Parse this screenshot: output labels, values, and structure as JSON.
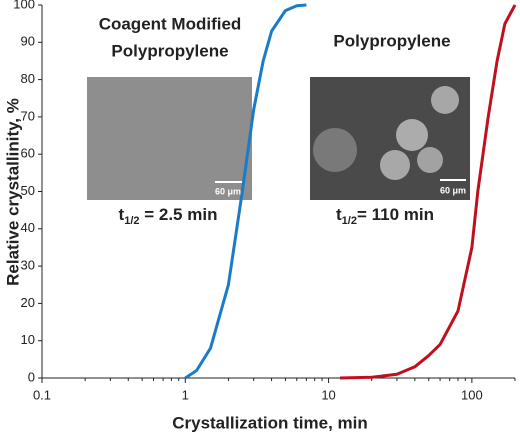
{
  "chart_data": {
    "type": "line",
    "x_label": "Crystallization time, min",
    "y_label": "Relative crystallinity, %",
    "log_x": true,
    "xlim": [
      0.1,
      200
    ],
    "xticks": [
      0.1,
      1,
      10,
      100
    ],
    "ylim": [
      0,
      100
    ],
    "yticks": [
      0,
      10,
      20,
      30,
      40,
      50,
      60,
      70,
      80,
      90,
      100
    ],
    "series": [
      {
        "name": "Coagent Modified Polypropylene",
        "color": "#1a7cc9",
        "x": [
          1,
          1.2,
          1.5,
          2,
          2.5,
          3,
          3.5,
          4,
          5,
          6,
          7
        ],
        "values": [
          0,
          2,
          8,
          25,
          50,
          72,
          85,
          93,
          98.5,
          99.8,
          100
        ]
      },
      {
        "name": "Polypropylene",
        "color": "#c0101e",
        "x": [
          12,
          20,
          30,
          40,
          50,
          60,
          80,
          100,
          110,
          130,
          150,
          170,
          200
        ],
        "values": [
          0,
          0.2,
          1,
          3,
          6,
          9,
          18,
          35,
          50,
          70,
          85,
          95,
          100
        ]
      }
    ],
    "annotations": [
      {
        "line1": "Coagent Modified",
        "line2": "Polypropylene",
        "color": "#1f78c8",
        "t": "t",
        "sub": "1/2",
        "rest": " = 2.5 min",
        "t_color": "#5b8fc9",
        "scale_bar": "60 μm"
      },
      {
        "line1": "Polypropylene",
        "color": "#b01020",
        "t": "t",
        "sub": "1/2",
        "rest": "= 110 min",
        "t_color": "#b01020",
        "scale_bar": "60 μm"
      }
    ]
  }
}
